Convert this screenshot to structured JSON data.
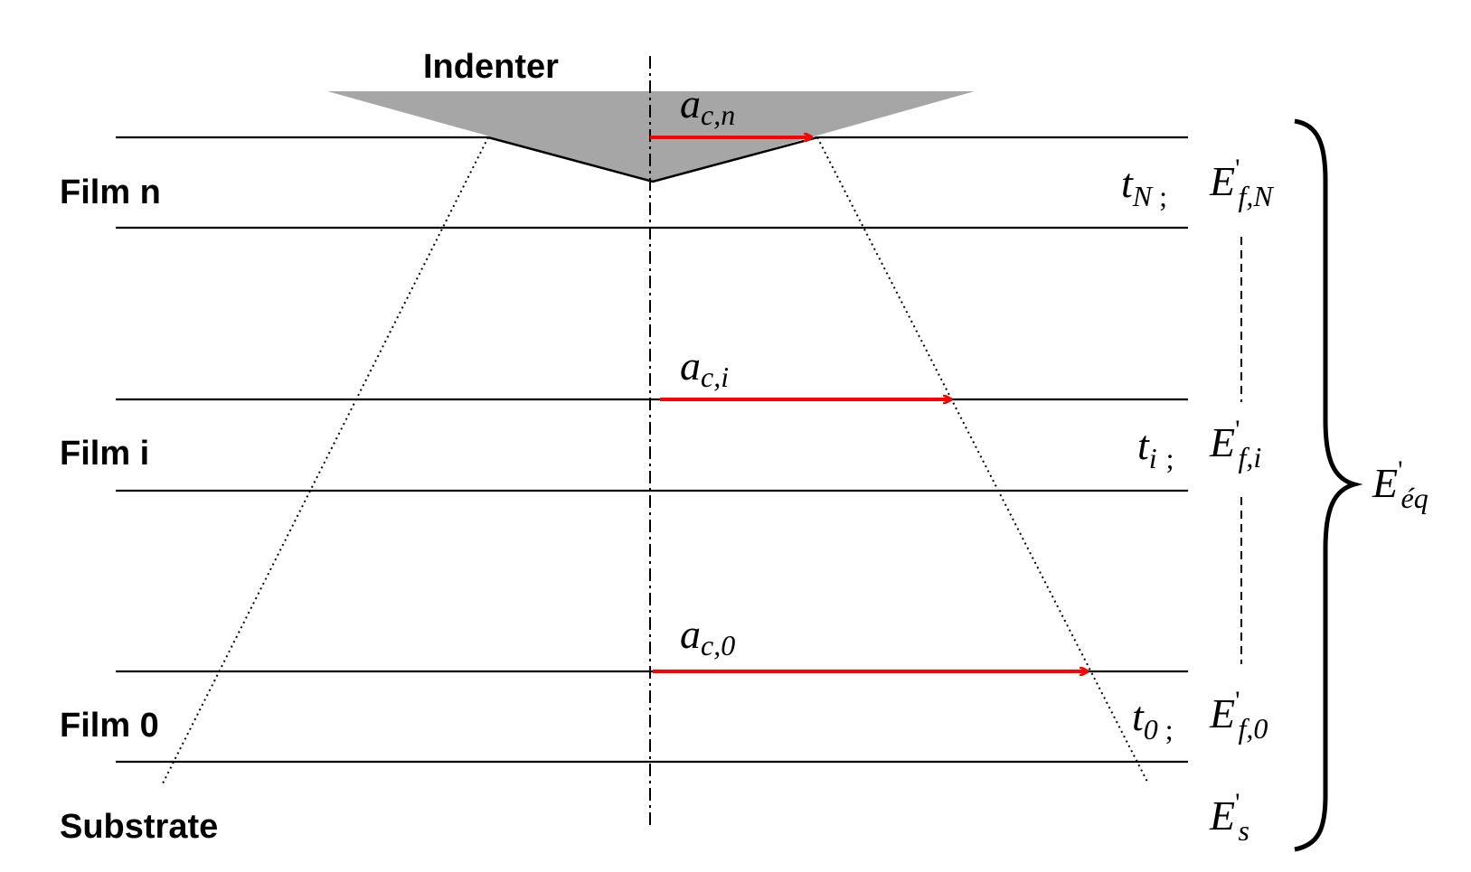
{
  "labels": {
    "indenter": "Indenter",
    "film_n": "Film n",
    "film_i": "Film i",
    "film_0": "Film 0",
    "substrate": "Substrate"
  },
  "contact_radii": [
    {
      "base": "a",
      "sub": "c,n"
    },
    {
      "base": "a",
      "sub": "c,i"
    },
    {
      "base": "a",
      "sub": "c,0"
    }
  ],
  "thickness": [
    {
      "base": "t",
      "sub": "N",
      "sep": ";"
    },
    {
      "base": "t",
      "sub": "i",
      "sep": ";"
    },
    {
      "base": "t",
      "sub": "0",
      "sep": ";"
    }
  ],
  "moduli": [
    {
      "base": "E",
      "prime": "'",
      "sub": "f,N"
    },
    {
      "base": "E",
      "prime": "'",
      "sub": "f,i"
    },
    {
      "base": "E",
      "prime": "'",
      "sub": "f,0"
    },
    {
      "base": "E",
      "prime": "'",
      "sub": "s"
    }
  ],
  "equivalent_modulus": {
    "base": "E",
    "prime": "'",
    "sub": "éq"
  },
  "colors": {
    "arrow": "#ff0000",
    "indenter_fill": "#a6a6a6",
    "line": "#000000"
  }
}
